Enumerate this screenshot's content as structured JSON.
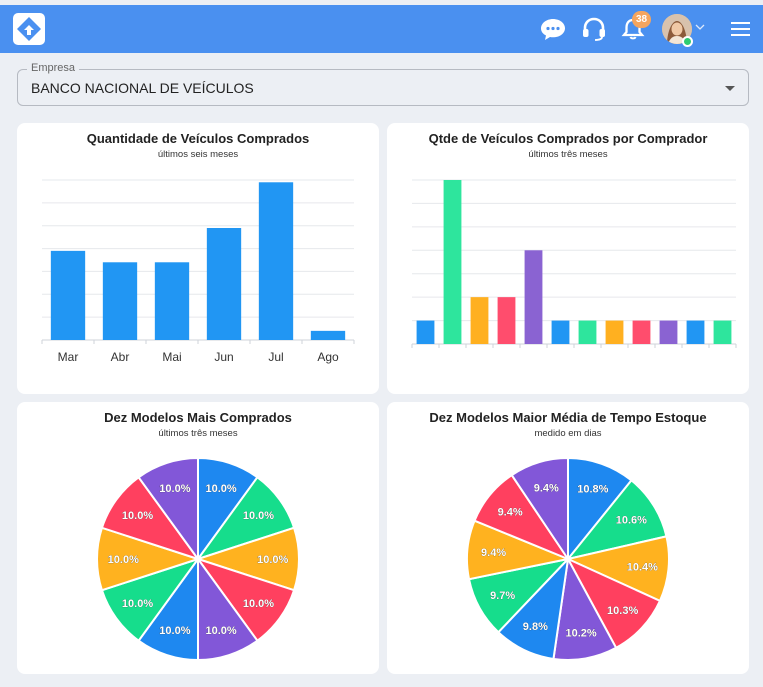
{
  "header": {
    "notification_count": "38",
    "colors": {
      "bar": "#4a90f0"
    }
  },
  "empresa": {
    "label": "Empresa",
    "value": "BANCO NACIONAL DE VEÍCULOS"
  },
  "chart_data": [
    {
      "type": "bar",
      "title": "Quantidade de Veículos Comprados",
      "subtitle": "últimos seis meses",
      "categories": [
        "Mar",
        "Abr",
        "Mai",
        "Jun",
        "Jul",
        "Ago"
      ],
      "values": [
        39,
        34,
        34,
        49,
        69,
        4
      ],
      "ylim": [
        0,
        70
      ],
      "grid": true,
      "color": "#2196f3"
    },
    {
      "type": "bar",
      "title": "Qtde de Veículos Comprados por Comprador",
      "subtitle": "últimos três meses",
      "values": [
        1,
        7,
        2,
        2,
        4,
        1,
        1,
        1,
        1,
        1,
        1,
        1
      ],
      "ylim": [
        0,
        7
      ],
      "grid": true,
      "colors": [
        "#2196f3",
        "#2ee59d",
        "#ffb020",
        "#ff4d6d",
        "#8a63d2",
        "#2196f3",
        "#2ee59d",
        "#ffb020",
        "#ff4d6d",
        "#8a63d2",
        "#2196f3",
        "#2ee59d"
      ]
    },
    {
      "type": "pie",
      "title": "Dez Modelos Mais Comprados",
      "subtitle": "últimos três meses",
      "values": [
        10.0,
        10.0,
        10.0,
        10.0,
        10.0,
        10.0,
        10.0,
        10.0,
        10.0,
        10.0
      ],
      "labels": [
        "10.0%",
        "10.0%",
        "10.0%",
        "10.0%",
        "10.0%",
        "10.0%",
        "10.0%",
        "10.0%",
        "10.0%",
        "10.0%"
      ],
      "colors": [
        "#1e88f0",
        "#16dd8c",
        "#ffb21f",
        "#ff405f",
        "#8257d8",
        "#1e88f0",
        "#16dd8c",
        "#ffb21f",
        "#ff405f",
        "#8257d8"
      ]
    },
    {
      "type": "pie",
      "title": "Dez Modelos Maior Média de Tempo Estoque",
      "subtitle": "medido em dias",
      "values": [
        10.8,
        10.6,
        10.4,
        10.3,
        10.2,
        9.8,
        9.7,
        9.4,
        9.4,
        9.4
      ],
      "labels": [
        "10.8%",
        "10.6%",
        "10.4%",
        "10.3%",
        "10.2%",
        "9.8%",
        "9.7%",
        "9.4%",
        "9.4%",
        "9.4%"
      ],
      "colors": [
        "#1e88f0",
        "#16dd8c",
        "#ffb21f",
        "#ff405f",
        "#8257d8",
        "#1e88f0",
        "#16dd8c",
        "#ffb21f",
        "#ff405f",
        "#8257d8"
      ]
    }
  ]
}
